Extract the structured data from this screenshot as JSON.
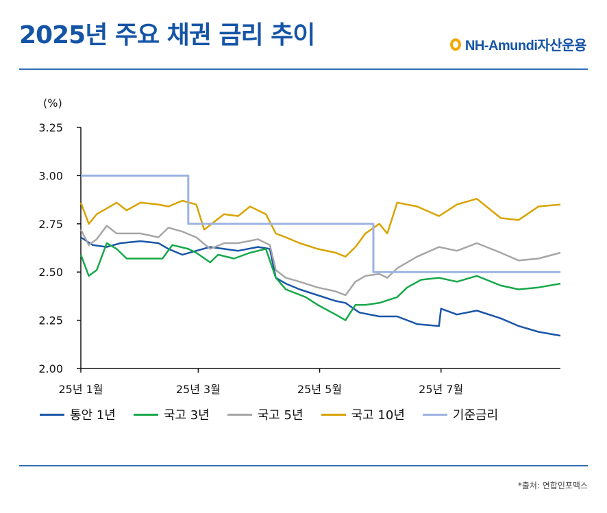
{
  "header": {
    "title": "2025년 주요 채권 금리 추이",
    "brand": "NH-Amundi자산운용"
  },
  "source": "*출처: 연합인포맥스",
  "colors": {
    "title": "#1454a6",
    "rule": "#2f6cb5",
    "brand_mark": "#f2a900"
  },
  "chart_data": {
    "type": "line",
    "unit_label": "(%)",
    "ylim": [
      2.0,
      3.25
    ],
    "yticks": [
      "2.00",
      "2.25",
      "2.50",
      "2.75",
      "3.00",
      "3.25"
    ],
    "x_start": "2025-01-02",
    "x_end": "2025-08-31",
    "xticks": [
      {
        "date": "2025-01-02",
        "label": "25년 1월"
      },
      {
        "date": "2025-03-02",
        "label": "25년 3월"
      },
      {
        "date": "2025-05-02",
        "label": "25년 5월"
      },
      {
        "date": "2025-07-02",
        "label": "25년 7월"
      }
    ],
    "grid": false,
    "legend_position": "bottom",
    "series": [
      {
        "name": "통안 1년",
        "color": "#1a56a8",
        "points": [
          [
            "2025-01-02",
            2.68
          ],
          [
            "2025-01-08",
            2.64
          ],
          [
            "2025-01-15",
            2.63
          ],
          [
            "2025-01-22",
            2.65
          ],
          [
            "2025-02-01",
            2.66
          ],
          [
            "2025-02-10",
            2.65
          ],
          [
            "2025-02-15",
            2.62
          ],
          [
            "2025-02-22",
            2.59
          ],
          [
            "2025-03-01",
            2.61
          ],
          [
            "2025-03-08",
            2.63
          ],
          [
            "2025-03-15",
            2.62
          ],
          [
            "2025-03-22",
            2.61
          ],
          [
            "2025-04-01",
            2.63
          ],
          [
            "2025-04-07",
            2.62
          ],
          [
            "2025-04-10",
            2.47
          ],
          [
            "2025-04-15",
            2.44
          ],
          [
            "2025-04-22",
            2.41
          ],
          [
            "2025-05-01",
            2.38
          ],
          [
            "2025-05-10",
            2.35
          ],
          [
            "2025-05-15",
            2.34
          ],
          [
            "2025-05-22",
            2.29
          ],
          [
            "2025-06-01",
            2.27
          ],
          [
            "2025-06-10",
            2.27
          ],
          [
            "2025-06-20",
            2.23
          ],
          [
            "2025-07-01",
            2.22
          ],
          [
            "2025-07-02",
            2.31
          ],
          [
            "2025-07-10",
            2.28
          ],
          [
            "2025-07-20",
            2.3
          ],
          [
            "2025-08-01",
            2.26
          ],
          [
            "2025-08-10",
            2.22
          ],
          [
            "2025-08-20",
            2.19
          ],
          [
            "2025-08-31",
            2.17
          ]
        ]
      },
      {
        "name": "국고 3년",
        "color": "#17a84a",
        "points": [
          [
            "2025-01-02",
            2.59
          ],
          [
            "2025-01-06",
            2.48
          ],
          [
            "2025-01-10",
            2.51
          ],
          [
            "2025-01-15",
            2.65
          ],
          [
            "2025-01-20",
            2.62
          ],
          [
            "2025-01-25",
            2.57
          ],
          [
            "2025-02-05",
            2.57
          ],
          [
            "2025-02-12",
            2.57
          ],
          [
            "2025-02-17",
            2.64
          ],
          [
            "2025-02-25",
            2.62
          ],
          [
            "2025-03-01",
            2.6
          ],
          [
            "2025-03-08",
            2.55
          ],
          [
            "2025-03-12",
            2.59
          ],
          [
            "2025-03-20",
            2.57
          ],
          [
            "2025-03-28",
            2.6
          ],
          [
            "2025-04-05",
            2.62
          ],
          [
            "2025-04-10",
            2.47
          ],
          [
            "2025-04-15",
            2.41
          ],
          [
            "2025-04-25",
            2.37
          ],
          [
            "2025-05-01",
            2.33
          ],
          [
            "2025-05-10",
            2.28
          ],
          [
            "2025-05-15",
            2.25
          ],
          [
            "2025-05-20",
            2.33
          ],
          [
            "2025-05-25",
            2.33
          ],
          [
            "2025-06-01",
            2.34
          ],
          [
            "2025-06-10",
            2.37
          ],
          [
            "2025-06-15",
            2.42
          ],
          [
            "2025-06-22",
            2.46
          ],
          [
            "2025-07-01",
            2.47
          ],
          [
            "2025-07-10",
            2.45
          ],
          [
            "2025-07-20",
            2.48
          ],
          [
            "2025-08-01",
            2.43
          ],
          [
            "2025-08-10",
            2.41
          ],
          [
            "2025-08-20",
            2.42
          ],
          [
            "2025-08-31",
            2.44
          ]
        ]
      },
      {
        "name": "국고 5년",
        "color": "#a6a6a6",
        "points": [
          [
            "2025-01-02",
            2.72
          ],
          [
            "2025-01-06",
            2.64
          ],
          [
            "2025-01-10",
            2.67
          ],
          [
            "2025-01-15",
            2.74
          ],
          [
            "2025-01-20",
            2.7
          ],
          [
            "2025-02-01",
            2.7
          ],
          [
            "2025-02-10",
            2.68
          ],
          [
            "2025-02-15",
            2.73
          ],
          [
            "2025-02-22",
            2.71
          ],
          [
            "2025-03-01",
            2.68
          ],
          [
            "2025-03-08",
            2.62
          ],
          [
            "2025-03-15",
            2.65
          ],
          [
            "2025-03-22",
            2.65
          ],
          [
            "2025-04-01",
            2.67
          ],
          [
            "2025-04-07",
            2.64
          ],
          [
            "2025-04-10",
            2.51
          ],
          [
            "2025-04-15",
            2.47
          ],
          [
            "2025-04-22",
            2.45
          ],
          [
            "2025-05-01",
            2.42
          ],
          [
            "2025-05-10",
            2.4
          ],
          [
            "2025-05-15",
            2.38
          ],
          [
            "2025-05-20",
            2.45
          ],
          [
            "2025-05-25",
            2.48
          ],
          [
            "2025-06-01",
            2.49
          ],
          [
            "2025-06-05",
            2.47
          ],
          [
            "2025-06-10",
            2.52
          ],
          [
            "2025-06-20",
            2.58
          ],
          [
            "2025-07-01",
            2.63
          ],
          [
            "2025-07-10",
            2.61
          ],
          [
            "2025-07-20",
            2.65
          ],
          [
            "2025-08-01",
            2.6
          ],
          [
            "2025-08-10",
            2.56
          ],
          [
            "2025-08-20",
            2.57
          ],
          [
            "2025-08-31",
            2.6
          ]
        ]
      },
      {
        "name": "국고 10년",
        "color": "#d8a300",
        "points": [
          [
            "2025-01-02",
            2.86
          ],
          [
            "2025-01-06",
            2.75
          ],
          [
            "2025-01-10",
            2.8
          ],
          [
            "2025-01-15",
            2.83
          ],
          [
            "2025-01-20",
            2.86
          ],
          [
            "2025-01-25",
            2.82
          ],
          [
            "2025-02-01",
            2.86
          ],
          [
            "2025-02-10",
            2.85
          ],
          [
            "2025-02-15",
            2.84
          ],
          [
            "2025-02-22",
            2.87
          ],
          [
            "2025-03-01",
            2.85
          ],
          [
            "2025-03-05",
            2.72
          ],
          [
            "2025-03-10",
            2.76
          ],
          [
            "2025-03-15",
            2.8
          ],
          [
            "2025-03-22",
            2.79
          ],
          [
            "2025-03-28",
            2.84
          ],
          [
            "2025-04-05",
            2.8
          ],
          [
            "2025-04-10",
            2.7
          ],
          [
            "2025-04-15",
            2.68
          ],
          [
            "2025-04-22",
            2.65
          ],
          [
            "2025-05-01",
            2.62
          ],
          [
            "2025-05-10",
            2.6
          ],
          [
            "2025-05-15",
            2.58
          ],
          [
            "2025-05-20",
            2.63
          ],
          [
            "2025-05-25",
            2.7
          ],
          [
            "2025-06-01",
            2.75
          ],
          [
            "2025-06-05",
            2.7
          ],
          [
            "2025-06-10",
            2.86
          ],
          [
            "2025-06-20",
            2.84
          ],
          [
            "2025-07-01",
            2.79
          ],
          [
            "2025-07-10",
            2.85
          ],
          [
            "2025-07-20",
            2.88
          ],
          [
            "2025-08-01",
            2.78
          ],
          [
            "2025-08-10",
            2.77
          ],
          [
            "2025-08-20",
            2.84
          ],
          [
            "2025-08-31",
            2.85
          ]
        ]
      },
      {
        "name": "기준금리",
        "color": "#9bb2e2",
        "points": [
          [
            "2025-01-02",
            3.0
          ],
          [
            "2025-02-25",
            3.0
          ],
          [
            "2025-02-25",
            2.75
          ],
          [
            "2025-05-29",
            2.75
          ],
          [
            "2025-05-29",
            2.5
          ],
          [
            "2025-08-31",
            2.5
          ]
        ]
      }
    ]
  }
}
